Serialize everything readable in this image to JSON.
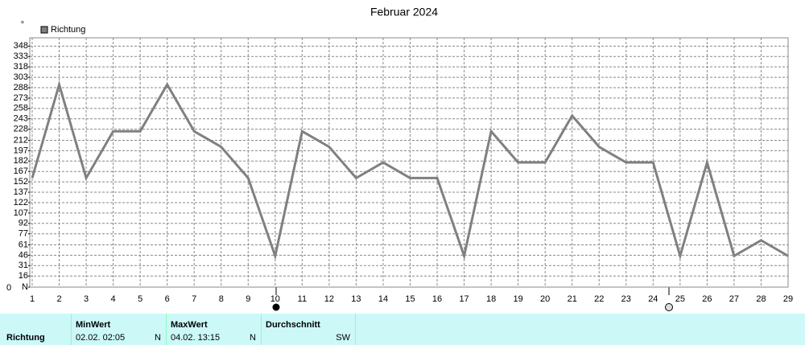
{
  "chart_data": {
    "type": "line",
    "title": "Februar 2024",
    "y_unit": "°",
    "corner_label": "0",
    "x": [
      1,
      2,
      3,
      4,
      5,
      6,
      7,
      8,
      9,
      10,
      11,
      12,
      13,
      14,
      15,
      16,
      17,
      18,
      19,
      20,
      21,
      22,
      23,
      24,
      25,
      26,
      27,
      28,
      29
    ],
    "series": [
      {
        "name": "Richtung",
        "color": "#808080",
        "values": [
          157.5,
          292.5,
          157.5,
          225,
          225,
          292.5,
          225,
          202.5,
          157.5,
          45,
          225,
          202.5,
          157.5,
          180,
          157.5,
          157.5,
          45,
          225,
          180,
          180,
          247.5,
          202.5,
          180,
          180,
          45,
          180,
          45,
          67.5,
          45
        ]
      }
    ],
    "xlim": [
      1,
      29
    ],
    "xticks": [
      1,
      2,
      3,
      4,
      5,
      6,
      7,
      8,
      9,
      10,
      11,
      12,
      13,
      14,
      15,
      16,
      17,
      18,
      19,
      20,
      21,
      22,
      23,
      24,
      25,
      26,
      27,
      28,
      29
    ],
    "ylim": [
      0,
      360
    ],
    "yticks": [
      {
        "value": 0,
        "label": "N"
      },
      16,
      31,
      46,
      61,
      77,
      92,
      107,
      122,
      137,
      152,
      167,
      182,
      197,
      212,
      228,
      243,
      258,
      273,
      288,
      303,
      318,
      333,
      348
    ],
    "grid": true,
    "legend": "top-left"
  },
  "stats_table": {
    "row_label": "Richtung",
    "columns": [
      {
        "header": "MinWert",
        "time": "02.02.  02:05",
        "value": "N"
      },
      {
        "header": "MaxWert",
        "time": "04.02.  13:15",
        "value": "N"
      },
      {
        "header": "Durchschnitt",
        "value": "SW"
      }
    ]
  }
}
